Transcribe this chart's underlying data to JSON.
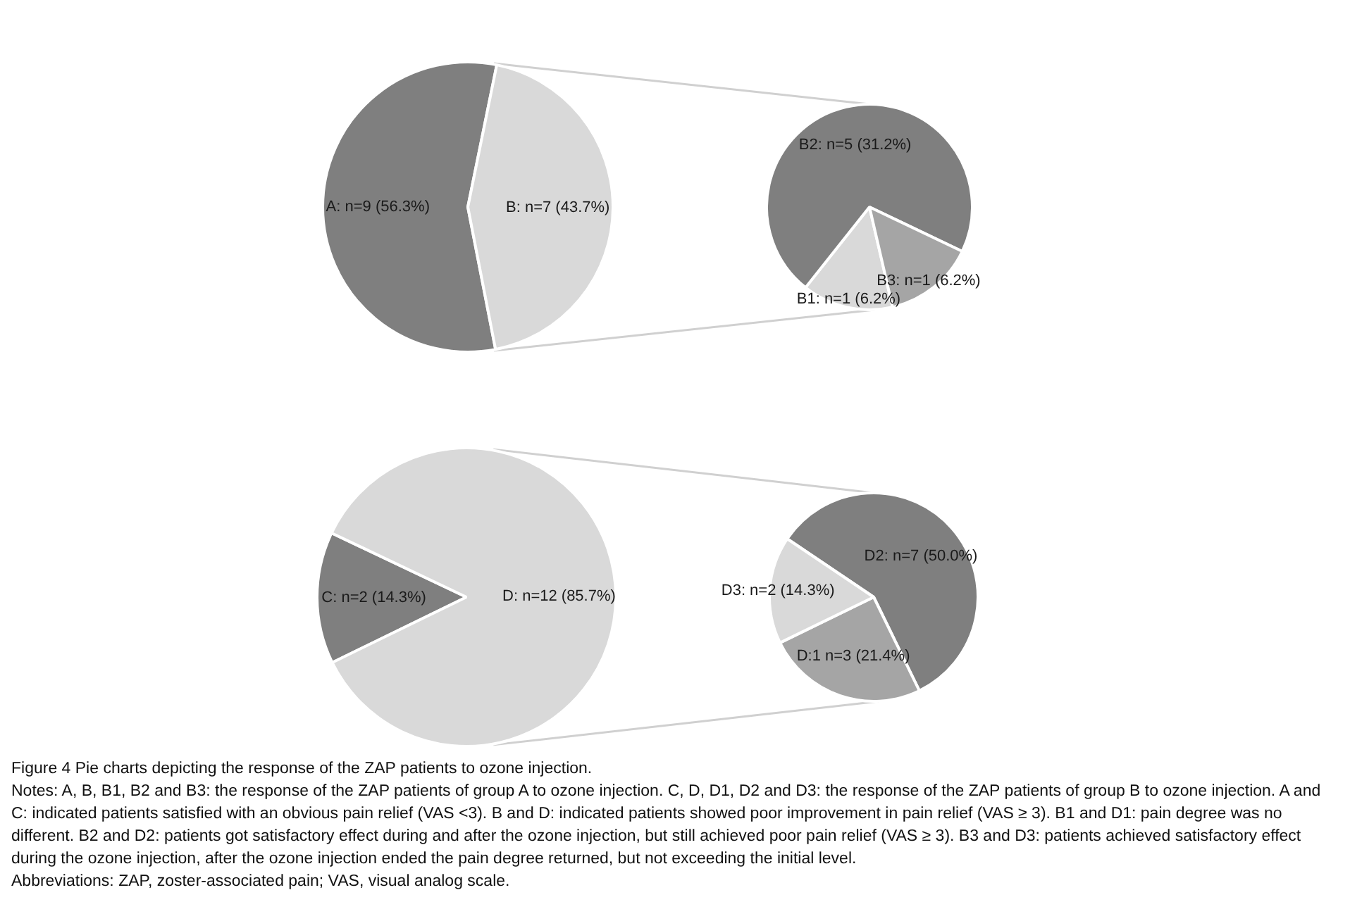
{
  "chart_data": [
    {
      "type": "pie",
      "categories": [
        "A: n=9 (56.3%)",
        "B: n=7 (43.7%)"
      ],
      "values": [
        9,
        7
      ],
      "colors": [
        "#7f7f7f",
        "#d9d9d9"
      ]
    },
    {
      "type": "pie",
      "categories": [
        "B1: n=1 (6.2%)",
        "B2: n=5 (31.2%)",
        "B3: n=1 (6.2%)"
      ],
      "values": [
        1,
        5,
        1
      ],
      "colors": [
        "#d9d9d9",
        "#7f7f7f",
        "#a5a5a5"
      ]
    },
    {
      "type": "pie",
      "categories": [
        "C: n=2 (14.3%)",
        "D: n=12 (85.7%)"
      ],
      "values": [
        2,
        12
      ],
      "colors": [
        "#7f7f7f",
        "#d9d9d9"
      ]
    },
    {
      "type": "pie",
      "categories": [
        "D2: n=7 (50.0%)",
        "D:1 n=3 (21.4%)",
        "D3: n=2 (14.3%)"
      ],
      "values": [
        7,
        3,
        2
      ],
      "colors": [
        "#7f7f7f",
        "#a5a5a5",
        "#d9d9d9"
      ],
      "annotations": [
        "Figure 4 Pie charts depicting the response of the ZAP patients to ozone injection.",
        "Notes: A, B, B1, B2 and B3: the response of the ZAP patients of group A to ozone injection. C, D, D1, D2 and D3: the response of the ZAP patients of group B to ozone injection. A and C: indicated patients satisfied with an obvious pain relief (VAS <3). B and D: indicated patients showed poor improvement in pain relief (VAS ≥ 3). B1 and D1: pain degree was no different. B2 and D2: patients got satisfactory effect during and after the ozone injection, but still achieved poor pain relief (VAS ≥ 3). B3 and D3: patients achieved satisfactory effect during the ozone injection, after the ozone injection ended the pain degree returned, but not exceeding the initial level.",
        "Abbreviations: ZAP, zoster-associated pain; VAS, visual analog scale."
      ]
    }
  ]
}
